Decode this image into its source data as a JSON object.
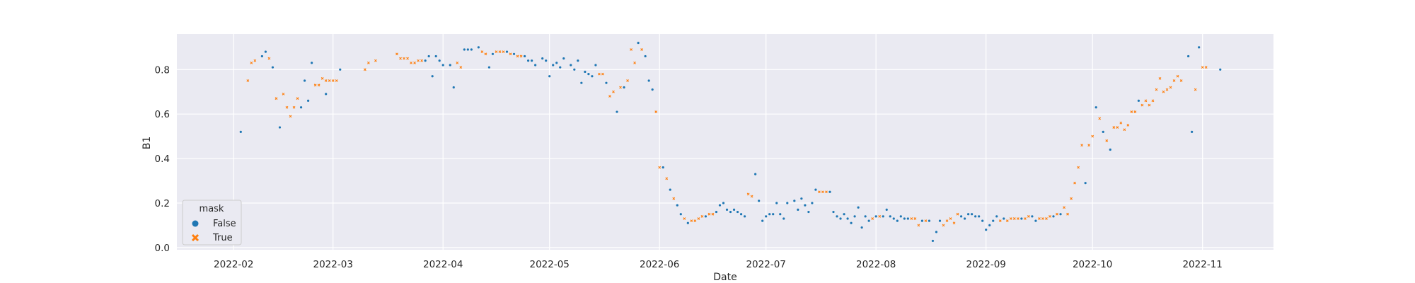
{
  "chart_data": {
    "type": "scatter",
    "title": "",
    "xlabel": "Date",
    "ylabel": "B1",
    "x_type": "date",
    "xlim": [
      "2022-01-16",
      "2022-11-21"
    ],
    "ylim": [
      -0.01,
      0.96
    ],
    "grid": true,
    "style": "seaborn-darkgrid",
    "x_ticks": [
      "2022-02-01",
      "2022-03-01",
      "2022-04-01",
      "2022-05-01",
      "2022-06-01",
      "2022-07-01",
      "2022-08-01",
      "2022-09-01",
      "2022-10-01",
      "2022-11-01"
    ],
    "x_tick_labels": [
      "2022-02",
      "2022-03",
      "2022-04",
      "2022-05",
      "2022-06",
      "2022-07",
      "2022-08",
      "2022-09",
      "2022-10",
      "2022-11"
    ],
    "y_ticks": [
      0.0,
      0.2,
      0.4,
      0.6,
      0.8
    ],
    "y_tick_labels": [
      "0.0",
      "0.2",
      "0.4",
      "0.6",
      "0.8"
    ],
    "legend": {
      "title": "mask",
      "position": "lower-left"
    },
    "series": [
      {
        "name": "False",
        "color": "#1f77b4",
        "marker": "circle",
        "points": [
          [
            "2022-02-03",
            0.52
          ],
          [
            "2022-02-09",
            0.86
          ],
          [
            "2022-02-10",
            0.88
          ],
          [
            "2022-02-12",
            0.81
          ],
          [
            "2022-02-14",
            0.54
          ],
          [
            "2022-02-20",
            0.63
          ],
          [
            "2022-02-21",
            0.75
          ],
          [
            "2022-02-22",
            0.66
          ],
          [
            "2022-02-23",
            0.83
          ],
          [
            "2022-02-27",
            0.69
          ],
          [
            "2022-03-03",
            0.8
          ],
          [
            "2022-03-27",
            0.84
          ],
          [
            "2022-03-28",
            0.86
          ],
          [
            "2022-03-29",
            0.77
          ],
          [
            "2022-03-30",
            0.86
          ],
          [
            "2022-03-31",
            0.84
          ],
          [
            "2022-04-01",
            0.82
          ],
          [
            "2022-04-03",
            0.82
          ],
          [
            "2022-04-04",
            0.72
          ],
          [
            "2022-04-07",
            0.89
          ],
          [
            "2022-04-08",
            0.89
          ],
          [
            "2022-04-09",
            0.89
          ],
          [
            "2022-04-11",
            0.9
          ],
          [
            "2022-04-14",
            0.81
          ],
          [
            "2022-04-15",
            0.87
          ],
          [
            "2022-04-19",
            0.88
          ],
          [
            "2022-04-21",
            0.87
          ],
          [
            "2022-04-24",
            0.86
          ],
          [
            "2022-04-25",
            0.84
          ],
          [
            "2022-04-26",
            0.84
          ],
          [
            "2022-04-27",
            0.82
          ],
          [
            "2022-04-29",
            0.85
          ],
          [
            "2022-04-30",
            0.84
          ],
          [
            "2022-05-01",
            0.77
          ],
          [
            "2022-05-02",
            0.82
          ],
          [
            "2022-05-03",
            0.83
          ],
          [
            "2022-05-04",
            0.81
          ],
          [
            "2022-05-05",
            0.85
          ],
          [
            "2022-05-07",
            0.82
          ],
          [
            "2022-05-08",
            0.8
          ],
          [
            "2022-05-09",
            0.84
          ],
          [
            "2022-05-10",
            0.74
          ],
          [
            "2022-05-11",
            0.79
          ],
          [
            "2022-05-12",
            0.78
          ],
          [
            "2022-05-13",
            0.77
          ],
          [
            "2022-05-14",
            0.82
          ],
          [
            "2022-05-17",
            0.74
          ],
          [
            "2022-05-20",
            0.61
          ],
          [
            "2022-05-22",
            0.72
          ],
          [
            "2022-05-26",
            0.92
          ],
          [
            "2022-05-28",
            0.86
          ],
          [
            "2022-05-29",
            0.75
          ],
          [
            "2022-05-30",
            0.71
          ],
          [
            "2022-06-02",
            0.36
          ],
          [
            "2022-06-04",
            0.26
          ],
          [
            "2022-06-06",
            0.19
          ],
          [
            "2022-06-07",
            0.15
          ],
          [
            "2022-06-09",
            0.11
          ],
          [
            "2022-06-14",
            0.14
          ],
          [
            "2022-06-17",
            0.16
          ],
          [
            "2022-06-18",
            0.19
          ],
          [
            "2022-06-19",
            0.2
          ],
          [
            "2022-06-20",
            0.17
          ],
          [
            "2022-06-21",
            0.16
          ],
          [
            "2022-06-22",
            0.17
          ],
          [
            "2022-06-23",
            0.16
          ],
          [
            "2022-06-24",
            0.15
          ],
          [
            "2022-06-25",
            0.14
          ],
          [
            "2022-06-28",
            0.33
          ],
          [
            "2022-06-29",
            0.21
          ],
          [
            "2022-06-30",
            0.12
          ],
          [
            "2022-07-01",
            0.14
          ],
          [
            "2022-07-02",
            0.15
          ],
          [
            "2022-07-03",
            0.15
          ],
          [
            "2022-07-04",
            0.2
          ],
          [
            "2022-07-05",
            0.15
          ],
          [
            "2022-07-06",
            0.13
          ],
          [
            "2022-07-07",
            0.2
          ],
          [
            "2022-07-09",
            0.21
          ],
          [
            "2022-07-10",
            0.17
          ],
          [
            "2022-07-11",
            0.22
          ],
          [
            "2022-07-12",
            0.19
          ],
          [
            "2022-07-13",
            0.16
          ],
          [
            "2022-07-14",
            0.2
          ],
          [
            "2022-07-15",
            0.26
          ],
          [
            "2022-07-19",
            0.25
          ],
          [
            "2022-07-20",
            0.16
          ],
          [
            "2022-07-21",
            0.14
          ],
          [
            "2022-07-22",
            0.13
          ],
          [
            "2022-07-23",
            0.15
          ],
          [
            "2022-07-24",
            0.13
          ],
          [
            "2022-07-25",
            0.11
          ],
          [
            "2022-07-26",
            0.14
          ],
          [
            "2022-07-27",
            0.18
          ],
          [
            "2022-07-28",
            0.09
          ],
          [
            "2022-07-29",
            0.14
          ],
          [
            "2022-07-30",
            0.12
          ],
          [
            "2022-08-01",
            0.14
          ],
          [
            "2022-08-03",
            0.14
          ],
          [
            "2022-08-04",
            0.17
          ],
          [
            "2022-08-05",
            0.14
          ],
          [
            "2022-08-06",
            0.13
          ],
          [
            "2022-08-07",
            0.12
          ],
          [
            "2022-08-08",
            0.14
          ],
          [
            "2022-08-09",
            0.13
          ],
          [
            "2022-08-10",
            0.13
          ],
          [
            "2022-08-14",
            0.12
          ],
          [
            "2022-08-16",
            0.12
          ],
          [
            "2022-08-17",
            0.03
          ],
          [
            "2022-08-18",
            0.07
          ],
          [
            "2022-08-19",
            0.12
          ],
          [
            "2022-08-25",
            0.14
          ],
          [
            "2022-08-26",
            0.13
          ],
          [
            "2022-08-27",
            0.15
          ],
          [
            "2022-08-28",
            0.15
          ],
          [
            "2022-08-29",
            0.14
          ],
          [
            "2022-08-30",
            0.14
          ],
          [
            "2022-08-31",
            0.12
          ],
          [
            "2022-09-01",
            0.08
          ],
          [
            "2022-09-02",
            0.1
          ],
          [
            "2022-09-03",
            0.12
          ],
          [
            "2022-09-04",
            0.14
          ],
          [
            "2022-09-06",
            0.13
          ],
          [
            "2022-09-11",
            0.13
          ],
          [
            "2022-09-14",
            0.14
          ],
          [
            "2022-09-15",
            0.12
          ],
          [
            "2022-09-20",
            0.14
          ],
          [
            "2022-09-22",
            0.15
          ],
          [
            "2022-09-29",
            0.29
          ],
          [
            "2022-10-02",
            0.63
          ],
          [
            "2022-10-04",
            0.52
          ],
          [
            "2022-10-06",
            0.44
          ],
          [
            "2022-10-14",
            0.66
          ],
          [
            "2022-10-28",
            0.86
          ],
          [
            "2022-10-29",
            0.52
          ],
          [
            "2022-10-31",
            0.9
          ],
          [
            "2022-11-06",
            0.8
          ]
        ]
      },
      {
        "name": "True",
        "color": "#ff7f0e",
        "marker": "x",
        "points": [
          [
            "2022-02-05",
            0.75
          ],
          [
            "2022-02-06",
            0.83
          ],
          [
            "2022-02-07",
            0.84
          ],
          [
            "2022-02-11",
            0.85
          ],
          [
            "2022-02-13",
            0.67
          ],
          [
            "2022-02-15",
            0.69
          ],
          [
            "2022-02-16",
            0.63
          ],
          [
            "2022-02-17",
            0.59
          ],
          [
            "2022-02-18",
            0.63
          ],
          [
            "2022-02-19",
            0.67
          ],
          [
            "2022-02-24",
            0.73
          ],
          [
            "2022-02-25",
            0.73
          ],
          [
            "2022-02-26",
            0.76
          ],
          [
            "2022-02-27",
            0.75
          ],
          [
            "2022-02-28",
            0.75
          ],
          [
            "2022-03-01",
            0.75
          ],
          [
            "2022-03-02",
            0.75
          ],
          [
            "2022-03-10",
            0.8
          ],
          [
            "2022-03-11",
            0.83
          ],
          [
            "2022-03-13",
            0.84
          ],
          [
            "2022-03-19",
            0.87
          ],
          [
            "2022-03-20",
            0.85
          ],
          [
            "2022-03-21",
            0.85
          ],
          [
            "2022-03-22",
            0.85
          ],
          [
            "2022-03-23",
            0.83
          ],
          [
            "2022-03-24",
            0.83
          ],
          [
            "2022-03-25",
            0.84
          ],
          [
            "2022-03-26",
            0.84
          ],
          [
            "2022-04-05",
            0.83
          ],
          [
            "2022-04-06",
            0.81
          ],
          [
            "2022-04-12",
            0.88
          ],
          [
            "2022-04-13",
            0.87
          ],
          [
            "2022-04-16",
            0.88
          ],
          [
            "2022-04-17",
            0.88
          ],
          [
            "2022-04-18",
            0.88
          ],
          [
            "2022-04-20",
            0.87
          ],
          [
            "2022-04-22",
            0.86
          ],
          [
            "2022-04-23",
            0.86
          ],
          [
            "2022-05-15",
            0.78
          ],
          [
            "2022-05-16",
            0.78
          ],
          [
            "2022-05-18",
            0.68
          ],
          [
            "2022-05-19",
            0.7
          ],
          [
            "2022-05-21",
            0.72
          ],
          [
            "2022-05-23",
            0.75
          ],
          [
            "2022-05-24",
            0.89
          ],
          [
            "2022-05-25",
            0.83
          ],
          [
            "2022-05-27",
            0.89
          ],
          [
            "2022-05-31",
            0.61
          ],
          [
            "2022-06-01",
            0.36
          ],
          [
            "2022-06-03",
            0.31
          ],
          [
            "2022-06-05",
            0.22
          ],
          [
            "2022-06-08",
            0.13
          ],
          [
            "2022-06-10",
            0.12
          ],
          [
            "2022-06-11",
            0.12
          ],
          [
            "2022-06-12",
            0.13
          ],
          [
            "2022-06-13",
            0.14
          ],
          [
            "2022-06-15",
            0.15
          ],
          [
            "2022-06-16",
            0.15
          ],
          [
            "2022-06-26",
            0.24
          ],
          [
            "2022-06-27",
            0.23
          ],
          [
            "2022-07-16",
            0.25
          ],
          [
            "2022-07-17",
            0.25
          ],
          [
            "2022-07-18",
            0.25
          ],
          [
            "2022-07-31",
            0.13
          ],
          [
            "2022-08-02",
            0.14
          ],
          [
            "2022-08-11",
            0.13
          ],
          [
            "2022-08-12",
            0.13
          ],
          [
            "2022-08-13",
            0.1
          ],
          [
            "2022-08-15",
            0.12
          ],
          [
            "2022-08-20",
            0.1
          ],
          [
            "2022-08-21",
            0.12
          ],
          [
            "2022-08-22",
            0.13
          ],
          [
            "2022-08-23",
            0.11
          ],
          [
            "2022-08-24",
            0.15
          ],
          [
            "2022-09-05",
            0.12
          ],
          [
            "2022-09-07",
            0.12
          ],
          [
            "2022-09-08",
            0.13
          ],
          [
            "2022-09-09",
            0.13
          ],
          [
            "2022-09-10",
            0.13
          ],
          [
            "2022-09-12",
            0.13
          ],
          [
            "2022-09-13",
            0.14
          ],
          [
            "2022-09-16",
            0.13
          ],
          [
            "2022-09-17",
            0.13
          ],
          [
            "2022-09-18",
            0.13
          ],
          [
            "2022-09-19",
            0.14
          ],
          [
            "2022-09-21",
            0.15
          ],
          [
            "2022-09-23",
            0.18
          ],
          [
            "2022-09-24",
            0.15
          ],
          [
            "2022-09-25",
            0.22
          ],
          [
            "2022-09-26",
            0.29
          ],
          [
            "2022-09-27",
            0.36
          ],
          [
            "2022-09-28",
            0.46
          ],
          [
            "2022-09-30",
            0.46
          ],
          [
            "2022-10-01",
            0.5
          ],
          [
            "2022-10-03",
            0.58
          ],
          [
            "2022-10-05",
            0.48
          ],
          [
            "2022-10-07",
            0.54
          ],
          [
            "2022-10-08",
            0.54
          ],
          [
            "2022-10-09",
            0.56
          ],
          [
            "2022-10-10",
            0.53
          ],
          [
            "2022-10-11",
            0.55
          ],
          [
            "2022-10-12",
            0.61
          ],
          [
            "2022-10-13",
            0.61
          ],
          [
            "2022-10-15",
            0.64
          ],
          [
            "2022-10-16",
            0.66
          ],
          [
            "2022-10-17",
            0.64
          ],
          [
            "2022-10-18",
            0.66
          ],
          [
            "2022-10-19",
            0.71
          ],
          [
            "2022-10-20",
            0.76
          ],
          [
            "2022-10-21",
            0.7
          ],
          [
            "2022-10-22",
            0.71
          ],
          [
            "2022-10-23",
            0.72
          ],
          [
            "2022-10-24",
            0.75
          ],
          [
            "2022-10-25",
            0.77
          ],
          [
            "2022-10-26",
            0.75
          ],
          [
            "2022-10-30",
            0.71
          ],
          [
            "2022-11-01",
            0.81
          ],
          [
            "2022-11-02",
            0.81
          ]
        ]
      }
    ]
  }
}
